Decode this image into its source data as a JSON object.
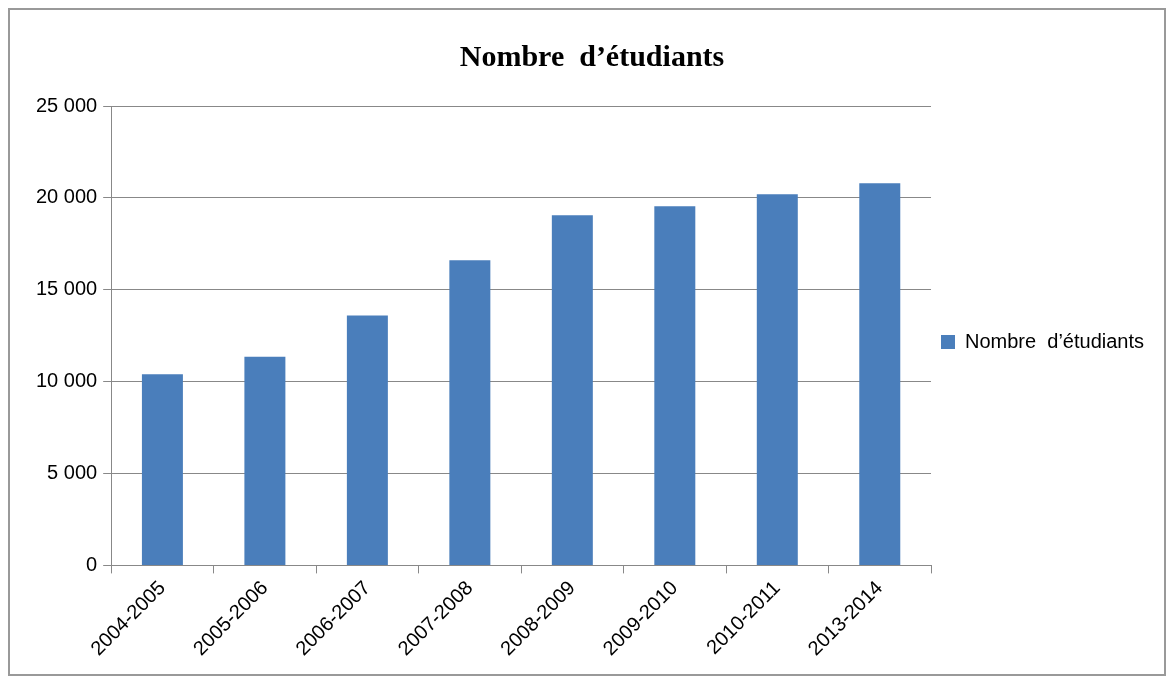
{
  "chart_data": {
    "type": "bar",
    "title": "Nombre  d’étudiants",
    "categories": [
      "2004-2005",
      "2005-2006",
      "2006-2007",
      "2007-2008",
      "2008-2009",
      "2009-2010",
      "2010-2011",
      "2013-2014"
    ],
    "series": [
      {
        "name": "Nombre  d’étudiants",
        "color": "#4a7ebb",
        "values": [
          10400,
          11350,
          13600,
          16600,
          19050,
          19550,
          20200,
          20800
        ]
      }
    ],
    "ylim": [
      0,
      25000
    ],
    "yticks": [
      {
        "value": 0,
        "label": "0"
      },
      {
        "value": 5000,
        "label": "5 000"
      },
      {
        "value": 10000,
        "label": "10 000"
      },
      {
        "value": 15000,
        "label": "15 000"
      },
      {
        "value": 20000,
        "label": "20 000"
      },
      {
        "value": 25000,
        "label": "25 000"
      }
    ],
    "grid": "y",
    "legend": "right"
  }
}
